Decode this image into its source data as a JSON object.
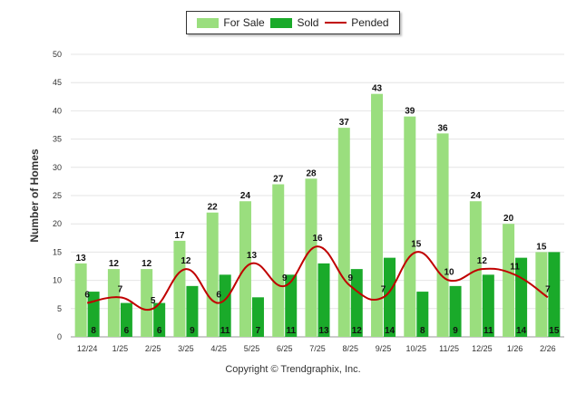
{
  "chart_data": {
    "type": "bar",
    "ylabel": "Number of Homes",
    "ylim": [
      0,
      50
    ],
    "yticks": [
      0,
      5,
      10,
      15,
      20,
      25,
      30,
      35,
      40,
      45,
      50
    ],
    "grid": true,
    "legend_placement": "top-center",
    "categories": [
      "12/24",
      "1/25",
      "2/25",
      "3/25",
      "4/25",
      "5/25",
      "6/25",
      "7/25",
      "8/25",
      "9/25",
      "10/25",
      "11/25",
      "12/25",
      "1/26",
      "2/26"
    ],
    "series": [
      {
        "name": "For Sale",
        "kind": "bar",
        "color": "#9ade7e",
        "values": [
          13,
          12,
          12,
          17,
          22,
          24,
          27,
          28,
          37,
          43,
          39,
          36,
          24,
          20,
          15
        ]
      },
      {
        "name": "Sold",
        "kind": "bar",
        "color": "#1aaa2a",
        "values": [
          8,
          6,
          6,
          9,
          11,
          7,
          11,
          13,
          12,
          14,
          8,
          9,
          11,
          14,
          15
        ]
      },
      {
        "name": "Pended",
        "kind": "line",
        "color": "#c00000",
        "values": [
          6,
          7,
          5,
          12,
          6,
          13,
          9,
          16,
          9,
          7,
          15,
          10,
          12,
          11,
          7
        ]
      }
    ]
  },
  "footer": {
    "copyright": "Copyright © Trendgraphix, Inc."
  }
}
